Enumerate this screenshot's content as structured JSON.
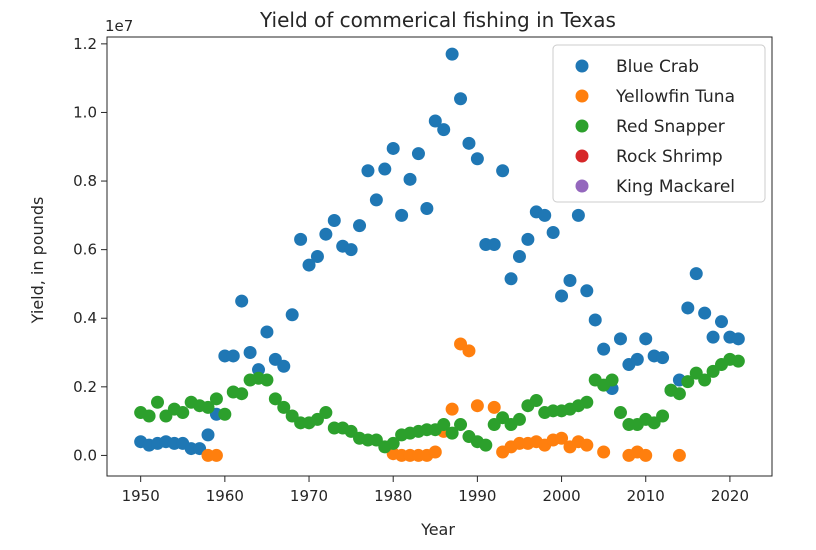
{
  "chart_data": {
    "type": "scatter",
    "title": "Yield of commerical fishing in Texas",
    "xlabel": "Year",
    "ylabel": "Yield, in pounds",
    "y_offset_label": "1e7",
    "xlim": [
      1946,
      2025
    ],
    "ylim": [
      -0.06,
      1.22
    ],
    "y_scale": 10000000,
    "x_ticks": [
      1950,
      1960,
      1970,
      1980,
      1990,
      2000,
      2010,
      2020
    ],
    "y_ticks": [
      0.0,
      0.2,
      0.4,
      0.6,
      0.8,
      1.0,
      1.2
    ],
    "y_tick_labels": [
      "0.0",
      "0.2",
      "0.4",
      "0.6",
      "0.8",
      "1.0",
      "1.2"
    ],
    "grid": false,
    "legend_position": "top-right",
    "series": [
      {
        "name": "Blue Crab",
        "color": "#1f77b4",
        "points": [
          [
            1950,
            0.04
          ],
          [
            1951,
            0.03
          ],
          [
            1952,
            0.035
          ],
          [
            1953,
            0.04
          ],
          [
            1954,
            0.035
          ],
          [
            1955,
            0.035
          ],
          [
            1956,
            0.02
          ],
          [
            1957,
            0.02
          ],
          [
            1958,
            0.06
          ],
          [
            1959,
            0.12
          ],
          [
            1960,
            0.29
          ],
          [
            1961,
            0.29
          ],
          [
            1962,
            0.45
          ],
          [
            1963,
            0.3
          ],
          [
            1964,
            0.25
          ],
          [
            1965,
            0.36
          ],
          [
            1966,
            0.28
          ],
          [
            1967,
            0.26
          ],
          [
            1968,
            0.41
          ],
          [
            1969,
            0.63
          ],
          [
            1970,
            0.555
          ],
          [
            1971,
            0.58
          ],
          [
            1972,
            0.645
          ],
          [
            1973,
            0.685
          ],
          [
            1974,
            0.61
          ],
          [
            1975,
            0.6
          ],
          [
            1976,
            0.67
          ],
          [
            1977,
            0.83
          ],
          [
            1978,
            0.745
          ],
          [
            1979,
            0.835
          ],
          [
            1980,
            0.895
          ],
          [
            1981,
            0.7
          ],
          [
            1982,
            0.805
          ],
          [
            1983,
            0.88
          ],
          [
            1984,
            0.72
          ],
          [
            1985,
            0.975
          ],
          [
            1986,
            0.95
          ],
          [
            1987,
            1.17
          ],
          [
            1988,
            1.04
          ],
          [
            1989,
            0.91
          ],
          [
            1990,
            0.865
          ],
          [
            1991,
            0.615
          ],
          [
            1992,
            0.615
          ],
          [
            1993,
            0.83
          ],
          [
            1994,
            0.515
          ],
          [
            1995,
            0.58
          ],
          [
            1996,
            0.63
          ],
          [
            1997,
            0.71
          ],
          [
            1998,
            0.7
          ],
          [
            1999,
            0.65
          ],
          [
            2000,
            0.465
          ],
          [
            2001,
            0.51
          ],
          [
            2002,
            0.7
          ],
          [
            2003,
            0.48
          ],
          [
            2004,
            0.395
          ],
          [
            2005,
            0.31
          ],
          [
            2006,
            0.195
          ],
          [
            2007,
            0.34
          ],
          [
            2008,
            0.265
          ],
          [
            2009,
            0.28
          ],
          [
            2010,
            0.34
          ],
          [
            2011,
            0.29
          ],
          [
            2012,
            0.285
          ],
          [
            2013,
            0.19
          ],
          [
            2014,
            0.22
          ],
          [
            2015,
            0.43
          ],
          [
            2016,
            0.53
          ],
          [
            2017,
            0.415
          ],
          [
            2018,
            0.345
          ],
          [
            2019,
            0.39
          ],
          [
            2020,
            0.345
          ],
          [
            2021,
            0.34
          ]
        ]
      },
      {
        "name": "Yellowfin Tuna",
        "color": "#ff7f0e",
        "points": [
          [
            1958,
            0.0
          ],
          [
            1959,
            0.0
          ],
          [
            1980,
            0.005
          ],
          [
            1981,
            0.0
          ],
          [
            1982,
            0.0
          ],
          [
            1983,
            0.0
          ],
          [
            1984,
            0.0
          ],
          [
            1985,
            0.01
          ],
          [
            1986,
            0.07
          ],
          [
            1987,
            0.135
          ],
          [
            1988,
            0.325
          ],
          [
            1989,
            0.305
          ],
          [
            1990,
            0.145
          ],
          [
            1992,
            0.14
          ],
          [
            1993,
            0.01
          ],
          [
            1994,
            0.025
          ],
          [
            1995,
            0.035
          ],
          [
            1996,
            0.035
          ],
          [
            1997,
            0.04
          ],
          [
            1998,
            0.03
          ],
          [
            1999,
            0.045
          ],
          [
            2000,
            0.05
          ],
          [
            2001,
            0.025
          ],
          [
            2002,
            0.04
          ],
          [
            2003,
            0.03
          ],
          [
            2005,
            0.01
          ],
          [
            2008,
            0.0
          ],
          [
            2009,
            0.01
          ],
          [
            2010,
            0.0
          ],
          [
            2014,
            0.0
          ]
        ]
      },
      {
        "name": "Red Snapper",
        "color": "#2ca02c",
        "points": [
          [
            1950,
            0.125
          ],
          [
            1951,
            0.115
          ],
          [
            1952,
            0.155
          ],
          [
            1953,
            0.115
          ],
          [
            1954,
            0.135
          ],
          [
            1955,
            0.125
          ],
          [
            1956,
            0.155
          ],
          [
            1957,
            0.145
          ],
          [
            1958,
            0.14
          ],
          [
            1959,
            0.165
          ],
          [
            1960,
            0.12
          ],
          [
            1961,
            0.185
          ],
          [
            1962,
            0.18
          ],
          [
            1963,
            0.22
          ],
          [
            1964,
            0.225
          ],
          [
            1965,
            0.22
          ],
          [
            1966,
            0.165
          ],
          [
            1967,
            0.14
          ],
          [
            1968,
            0.115
          ],
          [
            1969,
            0.095
          ],
          [
            1970,
            0.095
          ],
          [
            1971,
            0.105
          ],
          [
            1972,
            0.125
          ],
          [
            1973,
            0.08
          ],
          [
            1974,
            0.08
          ],
          [
            1975,
            0.07
          ],
          [
            1976,
            0.05
          ],
          [
            1977,
            0.045
          ],
          [
            1978,
            0.045
          ],
          [
            1979,
            0.025
          ],
          [
            1980,
            0.035
          ],
          [
            1981,
            0.06
          ],
          [
            1982,
            0.065
          ],
          [
            1983,
            0.07
          ],
          [
            1984,
            0.075
          ],
          [
            1985,
            0.075
          ],
          [
            1986,
            0.09
          ],
          [
            1987,
            0.065
          ],
          [
            1988,
            0.09
          ],
          [
            1989,
            0.055
          ],
          [
            1990,
            0.04
          ],
          [
            1991,
            0.03
          ],
          [
            1992,
            0.09
          ],
          [
            1993,
            0.11
          ],
          [
            1994,
            0.09
          ],
          [
            1995,
            0.105
          ],
          [
            1996,
            0.145
          ],
          [
            1997,
            0.16
          ],
          [
            1998,
            0.125
          ],
          [
            1999,
            0.13
          ],
          [
            2000,
            0.13
          ],
          [
            2001,
            0.135
          ],
          [
            2002,
            0.145
          ],
          [
            2003,
            0.155
          ],
          [
            2004,
            0.22
          ],
          [
            2005,
            0.205
          ],
          [
            2006,
            0.22
          ],
          [
            2007,
            0.125
          ],
          [
            2008,
            0.09
          ],
          [
            2009,
            0.09
          ],
          [
            2010,
            0.105
          ],
          [
            2011,
            0.095
          ],
          [
            2012,
            0.115
          ],
          [
            2013,
            0.19
          ],
          [
            2014,
            0.18
          ],
          [
            2015,
            0.215
          ],
          [
            2016,
            0.24
          ],
          [
            2017,
            0.22
          ],
          [
            2018,
            0.245
          ],
          [
            2019,
            0.265
          ],
          [
            2020,
            0.28
          ],
          [
            2021,
            0.275
          ]
        ]
      },
      {
        "name": "Rock Shrimp",
        "color": "#d62728",
        "points": []
      },
      {
        "name": "King Mackarel",
        "color": "#9467bd",
        "points": []
      }
    ]
  }
}
